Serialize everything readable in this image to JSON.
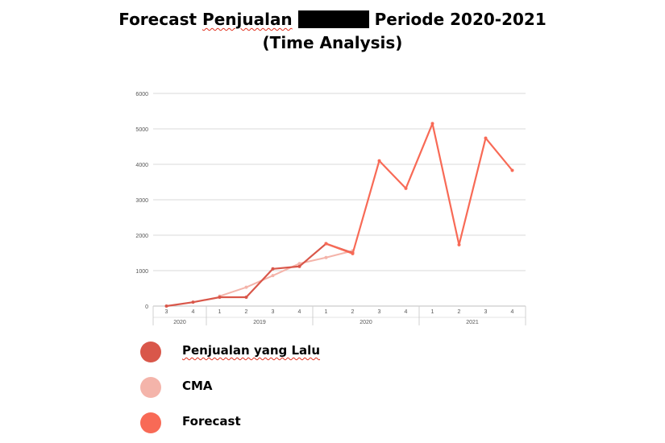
{
  "title": {
    "part1": "Forecast",
    "part2": "Penjualan",
    "part3": "Periode 2020-2021",
    "line2": "(Time Analysis)"
  },
  "colors": {
    "past_sales": "#d9574a",
    "cma": "#f4b4aa",
    "forecast": "#f86a56",
    "grid": "#d9d9d9",
    "text": "#555555"
  },
  "chart_data": {
    "type": "line",
    "categories": [
      "3",
      "4",
      "1",
      "2",
      "3",
      "4",
      "1",
      "2",
      "3",
      "4",
      "1",
      "2",
      "3",
      "4"
    ],
    "year_groups": [
      {
        "label": "2020",
        "start": 0,
        "end": 1
      },
      {
        "label": "2019",
        "start": 2,
        "end": 5
      },
      {
        "label": "2020",
        "start": 6,
        "end": 9
      },
      {
        "label": "2021",
        "start": 10,
        "end": 13
      }
    ],
    "y_ticks": [
      "0",
      "1000",
      "2000",
      "3000",
      "4000",
      "5000",
      "6000"
    ],
    "ylim": [
      0,
      6000
    ],
    "grid": true,
    "legend_position": "bottom-left",
    "series": [
      {
        "key": "past_sales",
        "name": "Penjualan yang Lalu",
        "values": [
          0,
          110,
          250,
          250,
          1050,
          1120,
          1760,
          1500,
          null,
          null,
          null,
          null,
          null,
          null
        ]
      },
      {
        "key": "cma",
        "name": "CMA",
        "values": [
          null,
          null,
          280,
          530,
          860,
          1200,
          1370,
          1560,
          null,
          null,
          null,
          null,
          null,
          null
        ]
      },
      {
        "key": "forecast",
        "name": "Forecast",
        "values": [
          null,
          null,
          null,
          null,
          null,
          null,
          1760,
          1480,
          4100,
          3320,
          5150,
          1730,
          4740,
          3830
        ]
      }
    ]
  }
}
